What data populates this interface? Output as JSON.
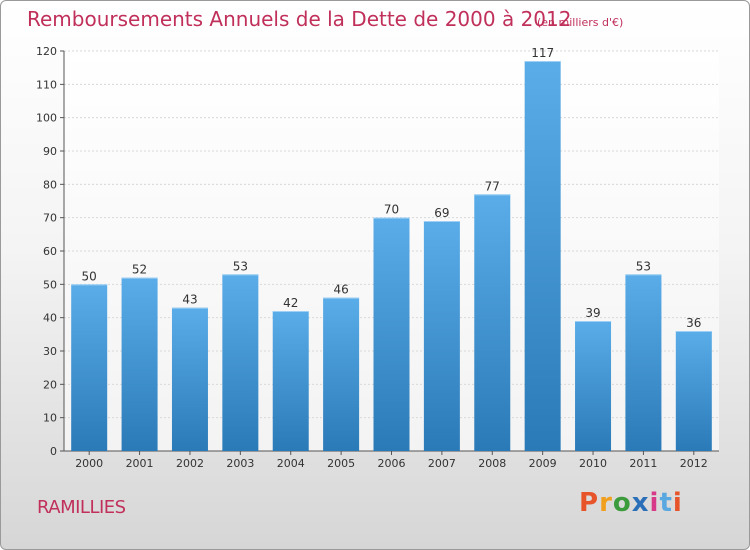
{
  "header": {
    "title": "Remboursements Annuels de la Dette de 2000 à 2012",
    "subtitle": "(en milliers d'€)"
  },
  "footer": {
    "place": "RAMILLIES",
    "brand": "Proxiti"
  },
  "colors": {
    "title": "#c0305b",
    "bar_top": "#5aade8",
    "bar_bottom": "#2a7ab8",
    "brand_letters": [
      "#e8542a",
      "#f0a01e",
      "#3c9b3c",
      "#2a6fb8",
      "#d83a8a",
      "#5aa8e0",
      "#e8542a"
    ]
  },
  "chart_data": {
    "type": "bar",
    "title": "Remboursements Annuels de la Dette de 2000 à 2012",
    "categories": [
      "2000",
      "2001",
      "2002",
      "2003",
      "2004",
      "2005",
      "2006",
      "2007",
      "2008",
      "2009",
      "2010",
      "2011",
      "2012"
    ],
    "values": [
      50,
      52,
      43,
      53,
      42,
      46,
      70,
      69,
      77,
      117,
      39,
      53,
      36
    ],
    "ylim": [
      0,
      120
    ],
    "yticks": [
      0,
      10,
      20,
      30,
      40,
      50,
      60,
      70,
      80,
      90,
      100,
      110,
      120
    ],
    "grid": true,
    "legend": "none"
  }
}
